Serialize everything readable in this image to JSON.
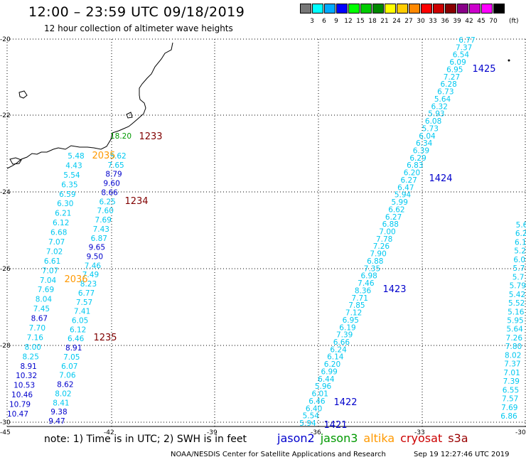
{
  "header": {
    "title": "12:00 – 23:59 UTC 09/18/2019",
    "subtitle": "12 hour collection of altimeter wave heights"
  },
  "legend": {
    "unit": "(ft)",
    "colors": [
      "#777777",
      "#00ffff",
      "#00aaff",
      "#0000ff",
      "#00ff00",
      "#00cc00",
      "#008800",
      "#ffff00",
      "#ffcc00",
      "#ff8800",
      "#ff0000",
      "#cc0000",
      "#880000",
      "#880088",
      "#cc00cc",
      "#ff00ff",
      "#000000"
    ],
    "labels": [
      "3",
      "6",
      "9",
      "12",
      "15",
      "18",
      "21",
      "24",
      "27",
      "30",
      "33",
      "36",
      "39",
      "42",
      "45",
      "70"
    ]
  },
  "axes": {
    "lat_labels": [
      "-20",
      "-22",
      "-24",
      "-26",
      "-28",
      "-30"
    ],
    "lon_labels": [
      "-45",
      "-42",
      "-39",
      "-36",
      "-33",
      "-30"
    ]
  },
  "colors": {
    "cyan": "#00c8f0",
    "blue": "#0000cc",
    "darkred": "#800000",
    "orange": "#ff9900",
    "green": "#009900"
  },
  "tracks": {
    "track_a": [
      "6.77",
      "7.37",
      "6.54",
      "6.09",
      "6.95",
      "7.27",
      "6.28",
      "6.73",
      "5.64",
      "6.32",
      "5.93",
      "6.08",
      "5.73",
      "6.04",
      "6.34",
      "6.39",
      "6.29",
      "6.83",
      "6.20",
      "6.27",
      "6.47",
      "5.94",
      "5.99",
      "6.62",
      "6.27",
      "6.88",
      "7.00",
      "7.78",
      "7.26",
      "7.90",
      "6.88",
      "7.35",
      "6.98",
      "7.46",
      "8.36",
      "7.71",
      "7.85",
      "7.12",
      "6.95",
      "6.19",
      "7.39",
      "6.66",
      "6.24",
      "6.14",
      "6.20",
      "6.99",
      "6.44",
      "5.96",
      "6.01",
      "6.46",
      "6.40",
      "5.54",
      "5.94"
    ],
    "track_b": [
      "5.62",
      "7.65",
      "8.79",
      "9.60",
      "8.66",
      "6.25",
      "7.60",
      "7.69",
      "7.43",
      "6.87",
      "9.65",
      "9.50",
      "7.46",
      "7.49",
      "8.23",
      "6.77",
      "7.57",
      "7.41",
      "6.05",
      "6.12",
      "6.46",
      "8.91",
      "7.05",
      "6.07",
      "7.06",
      "8.62",
      "8.02",
      "8.41",
      "9.38",
      "9.47"
    ],
    "track_c": [
      "5.48",
      "4.43",
      "5.54",
      "6.35",
      "6.59",
      "6.30",
      "6.21",
      "6.12",
      "6.68",
      "7.07",
      "7.02",
      "6.61",
      "7.07",
      "7.04",
      "7.69",
      "8.04",
      "7.45",
      "8.67",
      "7.70",
      "7.16",
      "8.00",
      "8.25",
      "8.91",
      "10.32",
      "10.53",
      "10.46",
      "10.79",
      "10.47"
    ],
    "track_d": [
      "5.6",
      "6.2",
      "6.1",
      "5.2",
      "6.0",
      "5.7",
      "5.7",
      "5.79",
      "5.42",
      "5.52",
      "5.16",
      "5.95",
      "5.64",
      "7.26",
      "7.80",
      "8.02",
      "7.37",
      "7.01",
      "7.39",
      "6.55",
      "7.57",
      "7.69",
      "6.86"
    ],
    "green_value": "18.20"
  },
  "times": [
    {
      "text": "1425",
      "color": "blue"
    },
    {
      "text": "1424",
      "color": "blue"
    },
    {
      "text": "1423",
      "color": "blue"
    },
    {
      "text": "1422",
      "color": "blue"
    },
    {
      "text": "1421",
      "color": "blue"
    },
    {
      "text": "1233",
      "color": "darkred"
    },
    {
      "text": "1234",
      "color": "darkred"
    },
    {
      "text": "1235",
      "color": "darkred"
    },
    {
      "text": "2035",
      "color": "orange"
    },
    {
      "text": "2036",
      "color": "orange"
    }
  ],
  "footer": {
    "note": "note: 1) Time is in UTC; 2) SWH is in feet",
    "satellites": [
      {
        "name": "jason2",
        "color": "#0000cc"
      },
      {
        "name": "jason3",
        "color": "#009900"
      },
      {
        "name": "altika",
        "color": "#ff9900"
      },
      {
        "name": "cryosat",
        "color": "#cc0000"
      },
      {
        "name": "s3a",
        "color": "#990000"
      }
    ],
    "credit": "NOAA/NESDIS Center for Satellite Applications and Research",
    "timestamp": "Sep 19 12:27:46 UTC 2019"
  }
}
